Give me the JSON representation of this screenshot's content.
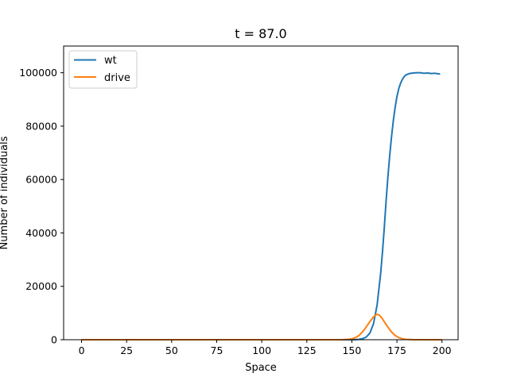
{
  "chart_data": {
    "type": "line",
    "title": "t = 87.0",
    "xlabel": "Space",
    "ylabel": "Number of individuals",
    "xlim": [
      -9.95,
      208.95
    ],
    "ylim": [
      0,
      110000
    ],
    "xticks": [
      0,
      25,
      50,
      75,
      100,
      125,
      150,
      175,
      200
    ],
    "yticks": [
      0,
      20000,
      40000,
      60000,
      80000,
      100000
    ],
    "grid": false,
    "legend_position": "top-left",
    "series": [
      {
        "name": "wt",
        "color": "#1f77b4",
        "x": [
          0,
          150,
          152,
          154,
          156,
          158,
          160,
          162,
          164,
          166,
          167,
          168,
          169,
          170,
          171,
          172,
          173,
          174,
          175,
          176,
          177,
          178,
          179,
          180,
          182,
          184,
          186,
          188,
          190,
          192,
          194,
          196,
          198,
          199
        ],
        "y": [
          0,
          0,
          50,
          150,
          400,
          1000,
          2500,
          6000,
          13000,
          25000,
          33000,
          42000,
          52000,
          61000,
          69000,
          76000,
          82000,
          87000,
          91000,
          94000,
          96000,
          97500,
          98500,
          99200,
          99700,
          99900,
          100000,
          100000,
          99800,
          99900,
          99700,
          99800,
          99600,
          99500
        ]
      },
      {
        "name": "drive",
        "color": "#ff7f0e",
        "x": [
          0,
          140,
          145,
          148,
          150,
          152,
          154,
          156,
          158,
          160,
          162,
          163,
          164,
          165,
          166,
          167,
          168,
          170,
          172,
          174,
          176,
          178,
          180,
          184,
          188,
          200
        ],
        "y": [
          0,
          0,
          50,
          150,
          350,
          800,
          1600,
          3000,
          4800,
          6800,
          8500,
          9200,
          9500,
          9300,
          8700,
          7800,
          6700,
          4700,
          2900,
          1600,
          800,
          350,
          150,
          30,
          0,
          0
        ]
      }
    ]
  }
}
